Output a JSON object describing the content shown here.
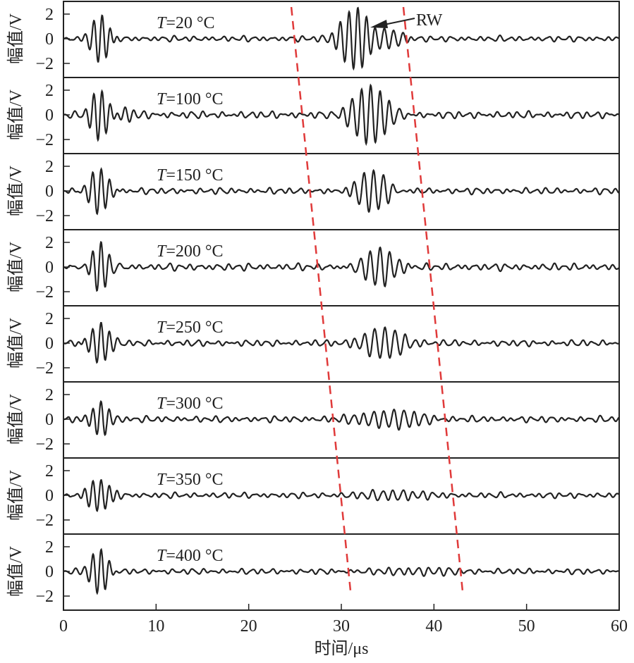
{
  "chart_data": {
    "type": "line",
    "xlabel": "时间/μs",
    "ylabel": "幅值/V",
    "xlim": [
      0,
      60
    ],
    "ylim": [
      -3,
      3
    ],
    "xticks": [
      "0",
      "10",
      "20",
      "30",
      "40",
      "50",
      "60"
    ],
    "yticks": [
      "2",
      "0",
      "−2"
    ],
    "annotation": "RW",
    "colors": {
      "trace": "#222222",
      "dashed": "#e03a3a"
    },
    "dashed_lines": [
      {
        "x_top": 24.6,
        "x_bottom": 31.0
      },
      {
        "x_top": 36.7,
        "x_bottom": 43.1
      }
    ],
    "panels": [
      {
        "label_T": "T",
        "label_rest": "=20 °C",
        "packets": [
          {
            "t": 4.0,
            "amp": 2.0,
            "w": 1.2,
            "period": 0.9
          },
          {
            "t": 31.6,
            "amp": 2.6,
            "w": 2.0,
            "period": 0.95
          },
          {
            "t": 35.5,
            "amp": 0.7,
            "w": 1.5,
            "period": 1.0
          }
        ],
        "noise": 0.2
      },
      {
        "label_T": "T",
        "label_rest": "=100 °C",
        "packets": [
          {
            "t": 4.0,
            "amp": 2.0,
            "w": 1.3,
            "period": 0.9
          },
          {
            "t": 6.5,
            "amp": 0.45,
            "w": 1.5,
            "period": 1.0
          },
          {
            "t": 33.0,
            "amp": 2.3,
            "w": 2.3,
            "period": 1.0
          }
        ],
        "noise": 0.25
      },
      {
        "label_T": "T",
        "label_rest": "=150 °C",
        "packets": [
          {
            "t": 3.9,
            "amp": 1.8,
            "w": 1.3,
            "period": 0.9
          },
          {
            "t": 33.3,
            "amp": 1.8,
            "w": 2.3,
            "period": 1.05
          }
        ],
        "noise": 0.22
      },
      {
        "label_T": "T",
        "label_rest": "=200 °C",
        "packets": [
          {
            "t": 3.9,
            "amp": 1.8,
            "w": 1.3,
            "period": 0.9
          },
          {
            "t": 34.0,
            "amp": 1.6,
            "w": 2.4,
            "period": 1.05
          }
        ],
        "noise": 0.25
      },
      {
        "label_T": "T",
        "label_rest": "=250 °C",
        "packets": [
          {
            "t": 3.9,
            "amp": 1.7,
            "w": 1.3,
            "period": 0.9
          },
          {
            "t": 34.5,
            "amp": 1.1,
            "w": 2.8,
            "period": 1.1
          }
        ],
        "noise": 0.22
      },
      {
        "label_T": "T",
        "label_rest": "=300 °C",
        "packets": [
          {
            "t": 3.9,
            "amp": 1.4,
            "w": 1.4,
            "period": 0.9
          },
          {
            "t": 35.5,
            "amp": 0.65,
            "w": 4.0,
            "period": 1.1
          }
        ],
        "noise": 0.22
      },
      {
        "label_T": "T",
        "label_rest": "=350 °C",
        "packets": [
          {
            "t": 3.9,
            "amp": 1.5,
            "w": 1.4,
            "period": 0.9
          },
          {
            "t": 36.5,
            "amp": 0.35,
            "w": 4.0,
            "period": 1.1
          }
        ],
        "noise": 0.2
      },
      {
        "label_T": "T",
        "label_rest": "=400 °C",
        "packets": [
          {
            "t": 3.9,
            "amp": 1.8,
            "w": 1.3,
            "period": 0.9
          },
          {
            "t": 37.0,
            "amp": 0.25,
            "w": 5.0,
            "period": 1.1
          }
        ],
        "noise": 0.2
      }
    ]
  }
}
